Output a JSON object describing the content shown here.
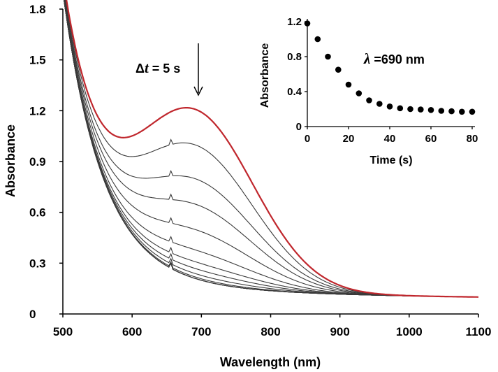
{
  "chart_data": [
    {
      "type": "line",
      "name": "main-spectra",
      "xlabel": "Wavelength (nm)",
      "ylabel": "Absorbance",
      "xlim": [
        500,
        1100
      ],
      "ylim": [
        0,
        1.8
      ],
      "xticks": [
        500,
        600,
        700,
        800,
        900,
        1000,
        1100
      ],
      "yticks": [
        0,
        0.3,
        0.6,
        0.9,
        1.2,
        1.5,
        1.8
      ],
      "ytick_labels": [
        "0",
        "0.3",
        "0.6",
        "0.9",
        "1.2",
        "1.5",
        "1.8"
      ],
      "annotation": {
        "prefix": "Δ",
        "var": "t",
        "rest": " = 5 s"
      },
      "colors": {
        "first_series": "#c0272d",
        "other_series": "#3a3a3a",
        "axis": "#000000"
      },
      "series": [
        {
          "name": "t0",
          "peak_wavelength": 690,
          "peak_absorbance": 1.21
        },
        {
          "name": "t1",
          "peak_wavelength": 690,
          "peak_absorbance": 1.0
        },
        {
          "name": "t2",
          "peak_wavelength": 690,
          "peak_absorbance": 0.8
        },
        {
          "name": "t3",
          "peak_wavelength": 690,
          "peak_absorbance": 0.65
        },
        {
          "name": "t4",
          "peak_wavelength": 690,
          "peak_absorbance": 0.5
        },
        {
          "name": "t5",
          "peak_wavelength": 690,
          "peak_absorbance": 0.38
        },
        {
          "name": "t6",
          "peak_wavelength": 690,
          "peak_absorbance": 0.31
        },
        {
          "name": "t7",
          "peak_wavelength": 690,
          "peak_absorbance": 0.27
        },
        {
          "name": "t8",
          "peak_wavelength": 690,
          "peak_absorbance": 0.24
        },
        {
          "name": "t9",
          "peak_wavelength": 690,
          "peak_absorbance": 0.22
        },
        {
          "name": "t10",
          "peak_wavelength": 690,
          "peak_absorbance": 0.21
        },
        {
          "name": "t11",
          "peak_wavelength": 690,
          "peak_absorbance": 0.2
        },
        {
          "name": "t12",
          "peak_wavelength": 690,
          "peak_absorbance": 0.195
        },
        {
          "name": "t13",
          "peak_wavelength": 690,
          "peak_absorbance": 0.19
        },
        {
          "name": "t14",
          "peak_wavelength": 690,
          "peak_absorbance": 0.185
        },
        {
          "name": "t15",
          "peak_wavelength": 690,
          "peak_absorbance": 0.18
        },
        {
          "name": "t16",
          "peak_wavelength": 690,
          "peak_absorbance": 0.175
        }
      ]
    },
    {
      "type": "scatter",
      "name": "inset-kinetics",
      "xlabel": "Time (s)",
      "ylabel": "Absorbance",
      "xlim": [
        0,
        80
      ],
      "ylim": [
        0,
        1.2
      ],
      "xticks": [
        0,
        20,
        40,
        60,
        80
      ],
      "yticks": [
        0,
        0.4,
        0.8,
        1.2
      ],
      "ytick_labels": [
        "0",
        "0.4",
        "0.8",
        "1.2"
      ],
      "annotation": {
        "lambda": "λ",
        "rest": " =690 nm"
      },
      "x": [
        0,
        5,
        10,
        15,
        20,
        25,
        30,
        35,
        40,
        45,
        50,
        55,
        60,
        65,
        70,
        75,
        80
      ],
      "y": [
        1.18,
        1.0,
        0.8,
        0.65,
        0.48,
        0.38,
        0.3,
        0.26,
        0.23,
        0.21,
        0.2,
        0.195,
        0.19,
        0.18,
        0.175,
        0.17,
        0.17
      ]
    }
  ]
}
